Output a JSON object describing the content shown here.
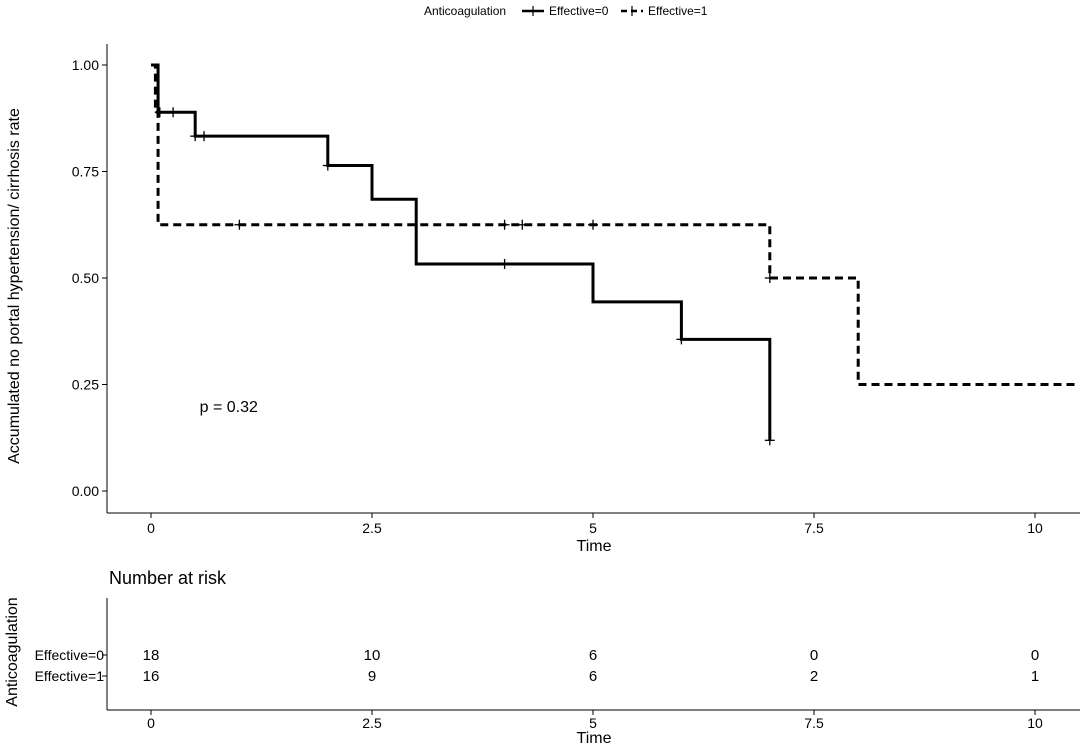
{
  "legend": {
    "title": "Anticoagulation",
    "entries": [
      "Effective=0",
      "Effective=1"
    ]
  },
  "chart_data": [
    {
      "type": "line",
      "subtype": "kaplan-meier-step",
      "title": "",
      "xlabel": "Time",
      "ylabel": "Accumulated no portal hypertension/ cirrhosis rate",
      "xlim": [
        -0.25,
        10.5
      ],
      "ylim": [
        0,
        1
      ],
      "xticks": [
        0,
        2.5,
        5,
        7.5,
        10
      ],
      "xtick_labels": [
        "0",
        "2.5",
        "5",
        "7.5",
        "10"
      ],
      "yticks": [
        0,
        0.25,
        0.5,
        0.75,
        1
      ],
      "ytick_labels": [
        "0.00",
        "0.25",
        "0.50",
        "0.75",
        "1.00"
      ],
      "annotation": "p = 0.32",
      "annotation_at": [
        0.55,
        0.2
      ],
      "legend_placement": "top",
      "series": [
        {
          "name": "Effective=0",
          "style": "solid",
          "steps": [
            [
              0,
              1.0
            ],
            [
              0.08,
              0.889
            ],
            [
              0.5,
              0.833
            ],
            [
              2.0,
              0.764
            ],
            [
              2.5,
              0.685
            ],
            [
              3.0,
              0.533
            ],
            [
              5.0,
              0.444
            ],
            [
              6.0,
              0.356
            ],
            [
              7.0,
              0.119
            ]
          ],
          "end_x": 7.0,
          "censor": [
            [
              0.25,
              0.889
            ],
            [
              0.5,
              0.833
            ],
            [
              0.6,
              0.833
            ],
            [
              2.0,
              0.764
            ],
            [
              4.0,
              0.533
            ],
            [
              6.0,
              0.356
            ],
            [
              7.0,
              0.119
            ]
          ]
        },
        {
          "name": "Effective=1",
          "style": "dashed",
          "steps": [
            [
              0,
              1.0
            ],
            [
              0.05,
              0.889
            ],
            [
              0.08,
              0.625
            ],
            [
              7.0,
              0.5
            ],
            [
              8.0,
              0.25
            ]
          ],
          "end_x": 10.5,
          "censor": [
            [
              0.1,
              0.889
            ],
            [
              1.0,
              0.625
            ],
            [
              4.0,
              0.625
            ],
            [
              4.2,
              0.625
            ],
            [
              5.0,
              0.625
            ],
            [
              7.0,
              0.5
            ]
          ]
        }
      ]
    },
    {
      "type": "table",
      "title": "Number at risk",
      "ylabel": "Anticoagulation",
      "xlabel": "Time",
      "xticks": [
        0,
        2.5,
        5,
        7.5,
        10
      ],
      "xtick_labels": [
        "0",
        "2.5",
        "5",
        "7.5",
        "10"
      ],
      "rows": [
        {
          "label": "Effective=0",
          "values": [
            "18",
            "10",
            "6",
            "0",
            "0"
          ]
        },
        {
          "label": "Effective=1",
          "values": [
            "16",
            "9",
            "6",
            "2",
            "1"
          ]
        }
      ]
    }
  ]
}
